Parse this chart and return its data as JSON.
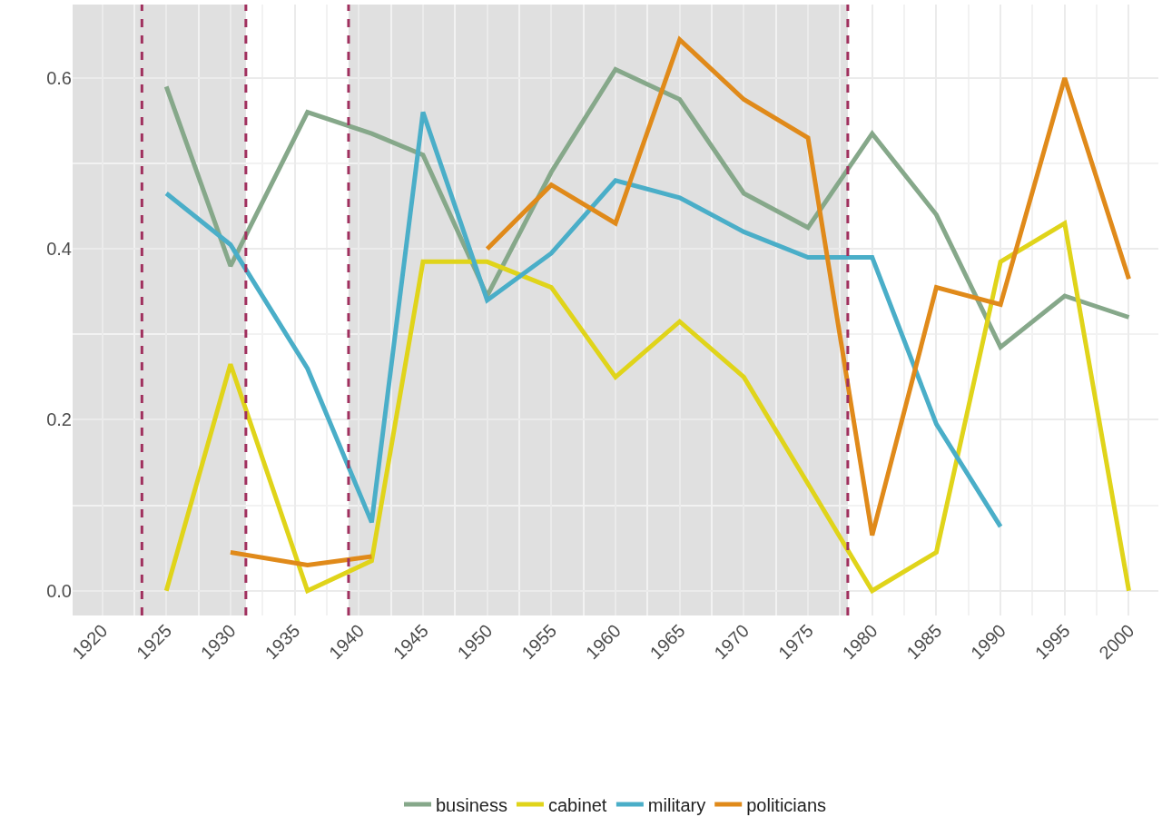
{
  "chart_data": {
    "type": "line",
    "x": [
      1925,
      1930,
      1936,
      1941,
      1945,
      1950,
      1955,
      1960,
      1965,
      1970,
      1975,
      1980,
      1985,
      1990,
      1995,
      2000
    ],
    "series": [
      {
        "name": "business",
        "color": "#86a88a",
        "values": [
          0.59,
          0.38,
          0.56,
          0.535,
          0.51,
          0.345,
          0.49,
          0.61,
          0.575,
          0.465,
          0.425,
          0.535,
          0.44,
          0.285,
          0.345,
          0.32
        ]
      },
      {
        "name": "cabinet",
        "color": "#e0d41a",
        "values": [
          0.0,
          0.265,
          0.0,
          0.035,
          0.385,
          0.385,
          0.355,
          0.25,
          0.315,
          0.25,
          0.125,
          0.0,
          0.045,
          0.385,
          0.43,
          0.0
        ]
      },
      {
        "name": "military",
        "color": "#4aaec8",
        "values": [
          0.465,
          0.405,
          0.26,
          0.08,
          0.56,
          0.34,
          0.395,
          0.48,
          0.46,
          0.42,
          0.39,
          0.39,
          0.195,
          0.075,
          null,
          null
        ]
      },
      {
        "name": "politicians",
        "color": "#e08a1a",
        "values": [
          null,
          0.045,
          0.03,
          0.04,
          null,
          0.4,
          0.475,
          0.43,
          0.645,
          0.575,
          0.53,
          0.065,
          0.355,
          0.335,
          0.6,
          0.365
        ]
      }
    ],
    "xlim": [
      1917.7,
      2002.3
    ],
    "xticks": [
      1920,
      1925,
      1930,
      1935,
      1940,
      1945,
      1950,
      1955,
      1960,
      1965,
      1970,
      1975,
      1980,
      1985,
      1990,
      1995,
      2000
    ],
    "ylim": [
      -0.029,
      0.686
    ],
    "yticks": [
      {
        "value": 0,
        "label": "0.0"
      },
      {
        "value": 0.2,
        "label": "0.2"
      },
      {
        "value": 0.4,
        "label": "0.4"
      },
      {
        "value": 0.6,
        "label": "0.6"
      }
    ],
    "bands": [
      {
        "axis": "x",
        "from": 1917.7,
        "to": 1931.2,
        "color": "#e0e0e0"
      },
      {
        "axis": "x",
        "from": 1939.2,
        "to": 1978.1,
        "color": "#e0e0e0"
      }
    ],
    "ref_lines": [
      {
        "axis": "x",
        "value": 1923.1,
        "color": "#a0305e",
        "line_style": "dashed"
      },
      {
        "axis": "x",
        "value": 1931.2,
        "color": "#a0305e",
        "line_style": "dashed"
      },
      {
        "axis": "x",
        "value": 1939.2,
        "color": "#a0305e",
        "line_style": "dashed"
      },
      {
        "axis": "x",
        "value": 1978.1,
        "color": "#a0305e",
        "line_style": "dashed"
      }
    ],
    "grid": true,
    "legend": "bottom",
    "marker": "none",
    "line_style": "solid"
  }
}
